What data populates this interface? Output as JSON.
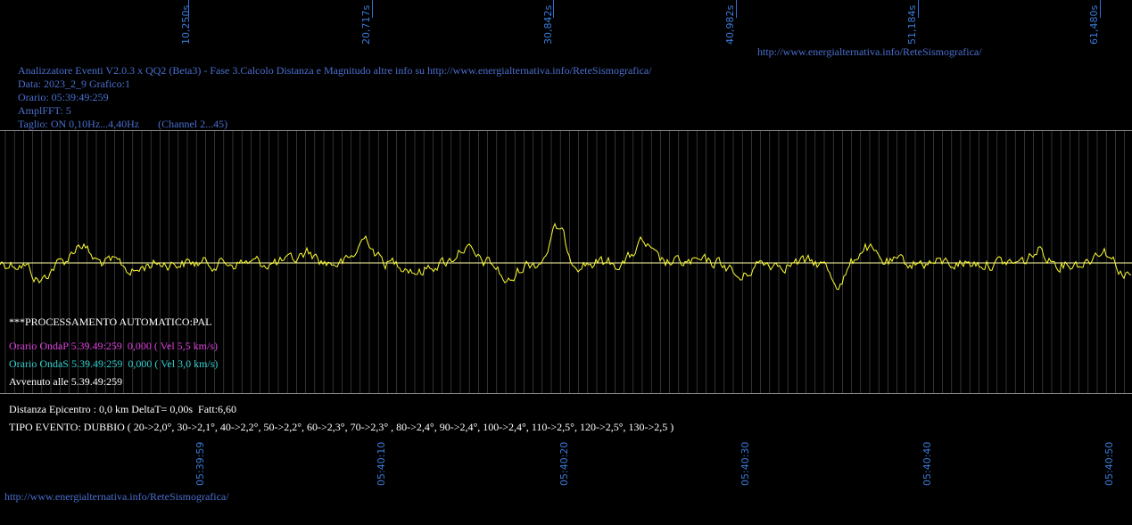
{
  "top_axis": {
    "labels": [
      "10,250s",
      "20,717s",
      "30,842s",
      "40,982s",
      "51,184s",
      "61,480s"
    ]
  },
  "header": {
    "url": "http://www.energialternativa.info/ReteSismografica/",
    "title_line": "Analizzatore Eventi V2.0.3 x QQ2 (Beta3) - Fase 3.Calcolo Distanza e Magnitudo altre info su http://www.energialternativa.info/ReteSismografica/",
    "data_line": "Data: 2023_2_9 Grafico:1",
    "orario_line": "Orario: 05:39:49:259",
    "ampl_line": "AmplFFT: 5",
    "taglio_line": "Taglio: ON 0,10Hz...4,40Hz       (Channel 2...45)"
  },
  "processing": {
    "title": "***PROCESSAMENTO AUTOMATICO:PAL",
    "onda_p": "Orario OndaP 5.39.49:259  0,000 ( Vel 5,5 km/s)",
    "onda_s": "Orario OndaS 5.39.49:259  0,000 ( Vel 3,0 km/s)",
    "avvenuto": "Avvenuto alle 5.39.49:259"
  },
  "result": {
    "distanza": "Distanza Epicentro : 0,0 km DeltaT= 0,00s  Fatt:6,60",
    "tipo_evento": "TIPO EVENTO: DUBBIO ( 20->2,0°, 30->2,1°, 40->2,2°, 50->2,2°, 60->2,3°, 70->2,3° , 80->2,4°, 90->2,4°, 100->2,4°, 110->2,5°, 120->2,5°, 130->2,5 )"
  },
  "bottom_axis": {
    "labels": [
      "05:39:59",
      "05:40:10",
      "05:40:20",
      "05:40:30",
      "05:40:40",
      "05:40:50"
    ]
  },
  "footer": {
    "url": "http://www.energialternativa.info/ReteSismografica/"
  },
  "colors": {
    "trace": "#ffff33",
    "baseline": "#ffffa0",
    "grid": "#555555",
    "axis_text": "#3a7ad8"
  }
}
